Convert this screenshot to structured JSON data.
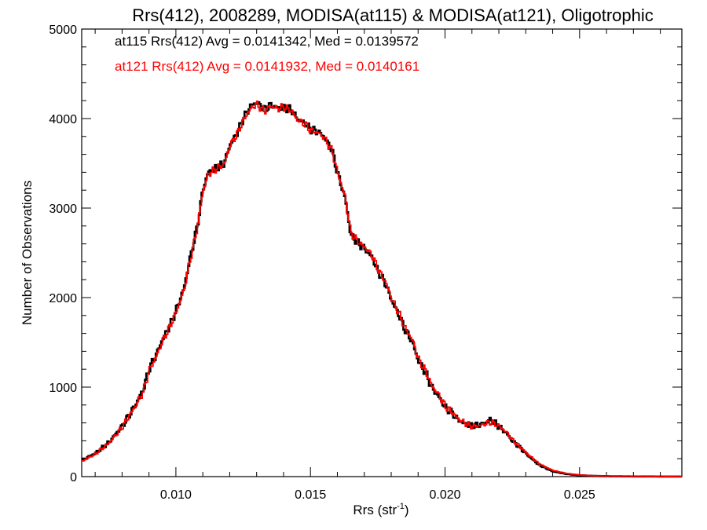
{
  "chart_data": {
    "type": "line",
    "title": "Rrs(412), 2008289, MODISA(at115) & MODISA(at121), Oligotrophic",
    "xlabel_main": "Rrs (str",
    "xlabel_sup": "-1",
    "xlabel_close": ")",
    "ylabel": "Number of Observations",
    "xlim": [
      0.0065,
      0.0288
    ],
    "ylim": [
      0,
      5000
    ],
    "xticks": [
      0.01,
      0.015,
      0.02,
      0.025
    ],
    "xtick_labels": [
      "0.010",
      "0.015",
      "0.020",
      "0.025"
    ],
    "yticks": [
      0,
      1000,
      2000,
      3000,
      4000,
      5000
    ],
    "ytick_labels": [
      "0",
      "1000",
      "2000",
      "3000",
      "4000",
      "5000"
    ],
    "annotations": [
      {
        "text": "at115 Rrs(412) Avg = 0.0141342, Med = 0.0139572",
        "color": "#000000"
      },
      {
        "text": "at121 Rrs(412) Avg = 0.0141932, Med = 0.0140161",
        "color": "#ff0000"
      }
    ],
    "grid": false,
    "series": [
      {
        "color": "#000000",
        "x": [
          0.0065,
          0.007,
          0.0075,
          0.008,
          0.0085,
          0.0088,
          0.009,
          0.0093,
          0.0095,
          0.0098,
          0.01,
          0.0103,
          0.0105,
          0.0108,
          0.011,
          0.0112,
          0.0115,
          0.0118,
          0.012,
          0.0123,
          0.0125,
          0.0128,
          0.013,
          0.0133,
          0.0135,
          0.0138,
          0.014,
          0.0143,
          0.0145,
          0.0148,
          0.015,
          0.0153,
          0.0155,
          0.0158,
          0.016,
          0.0163,
          0.0165,
          0.0168,
          0.017,
          0.0173,
          0.0175,
          0.0178,
          0.018,
          0.0183,
          0.0185,
          0.0188,
          0.019,
          0.0193,
          0.0195,
          0.0198,
          0.02,
          0.0203,
          0.0205,
          0.0208,
          0.021,
          0.0213,
          0.0215,
          0.0217,
          0.022,
          0.0223,
          0.0225,
          0.0228,
          0.023,
          0.0235,
          0.024,
          0.0245,
          0.025,
          0.0255,
          0.026,
          0.027,
          0.028,
          0.0288
        ],
        "y": [
          180,
          260,
          380,
          560,
          800,
          980,
          1200,
          1380,
          1530,
          1700,
          1850,
          2100,
          2400,
          2800,
          3200,
          3400,
          3450,
          3500,
          3700,
          3850,
          4000,
          4150,
          4180,
          4100,
          4150,
          4120,
          4120,
          4100,
          4000,
          3950,
          3880,
          3850,
          3800,
          3650,
          3400,
          3100,
          2700,
          2600,
          2550,
          2450,
          2300,
          2150,
          1980,
          1800,
          1650,
          1500,
          1300,
          1150,
          1000,
          880,
          780,
          700,
          630,
          580,
          570,
          580,
          600,
          640,
          560,
          480,
          400,
          320,
          260,
          130,
          60,
          30,
          15,
          8,
          5,
          2,
          1,
          0
        ]
      },
      {
        "color": "#ff0000",
        "x": [
          0.0065,
          0.007,
          0.0075,
          0.008,
          0.0085,
          0.0088,
          0.009,
          0.0093,
          0.0095,
          0.0098,
          0.01,
          0.0103,
          0.0105,
          0.0108,
          0.011,
          0.0112,
          0.0115,
          0.0118,
          0.012,
          0.0123,
          0.0125,
          0.0128,
          0.013,
          0.0133,
          0.0135,
          0.0138,
          0.014,
          0.0143,
          0.0145,
          0.0148,
          0.015,
          0.0153,
          0.0155,
          0.0158,
          0.016,
          0.0163,
          0.0165,
          0.0168,
          0.017,
          0.0173,
          0.0175,
          0.0178,
          0.018,
          0.0183,
          0.0185,
          0.0188,
          0.019,
          0.0193,
          0.0195,
          0.0198,
          0.02,
          0.0203,
          0.0205,
          0.0208,
          0.021,
          0.0213,
          0.0215,
          0.0217,
          0.022,
          0.0223,
          0.0225,
          0.0228,
          0.023,
          0.0235,
          0.024,
          0.0245,
          0.025,
          0.0255,
          0.026,
          0.027,
          0.028,
          0.0288
        ],
        "y": [
          170,
          250,
          370,
          550,
          790,
          960,
          1180,
          1360,
          1510,
          1690,
          1830,
          2080,
          2380,
          2780,
          3180,
          3380,
          3440,
          3490,
          3690,
          3840,
          3980,
          4120,
          4160,
          4080,
          4140,
          4110,
          4130,
          4090,
          3990,
          3940,
          3870,
          3840,
          3790,
          3640,
          3410,
          3110,
          2720,
          2620,
          2570,
          2470,
          2320,
          2170,
          2000,
          1820,
          1670,
          1520,
          1320,
          1170,
          1020,
          900,
          790,
          710,
          640,
          590,
          560,
          570,
          590,
          610,
          570,
          490,
          410,
          330,
          270,
          140,
          70,
          35,
          18,
          10,
          6,
          3,
          1,
          0
        ]
      }
    ]
  }
}
